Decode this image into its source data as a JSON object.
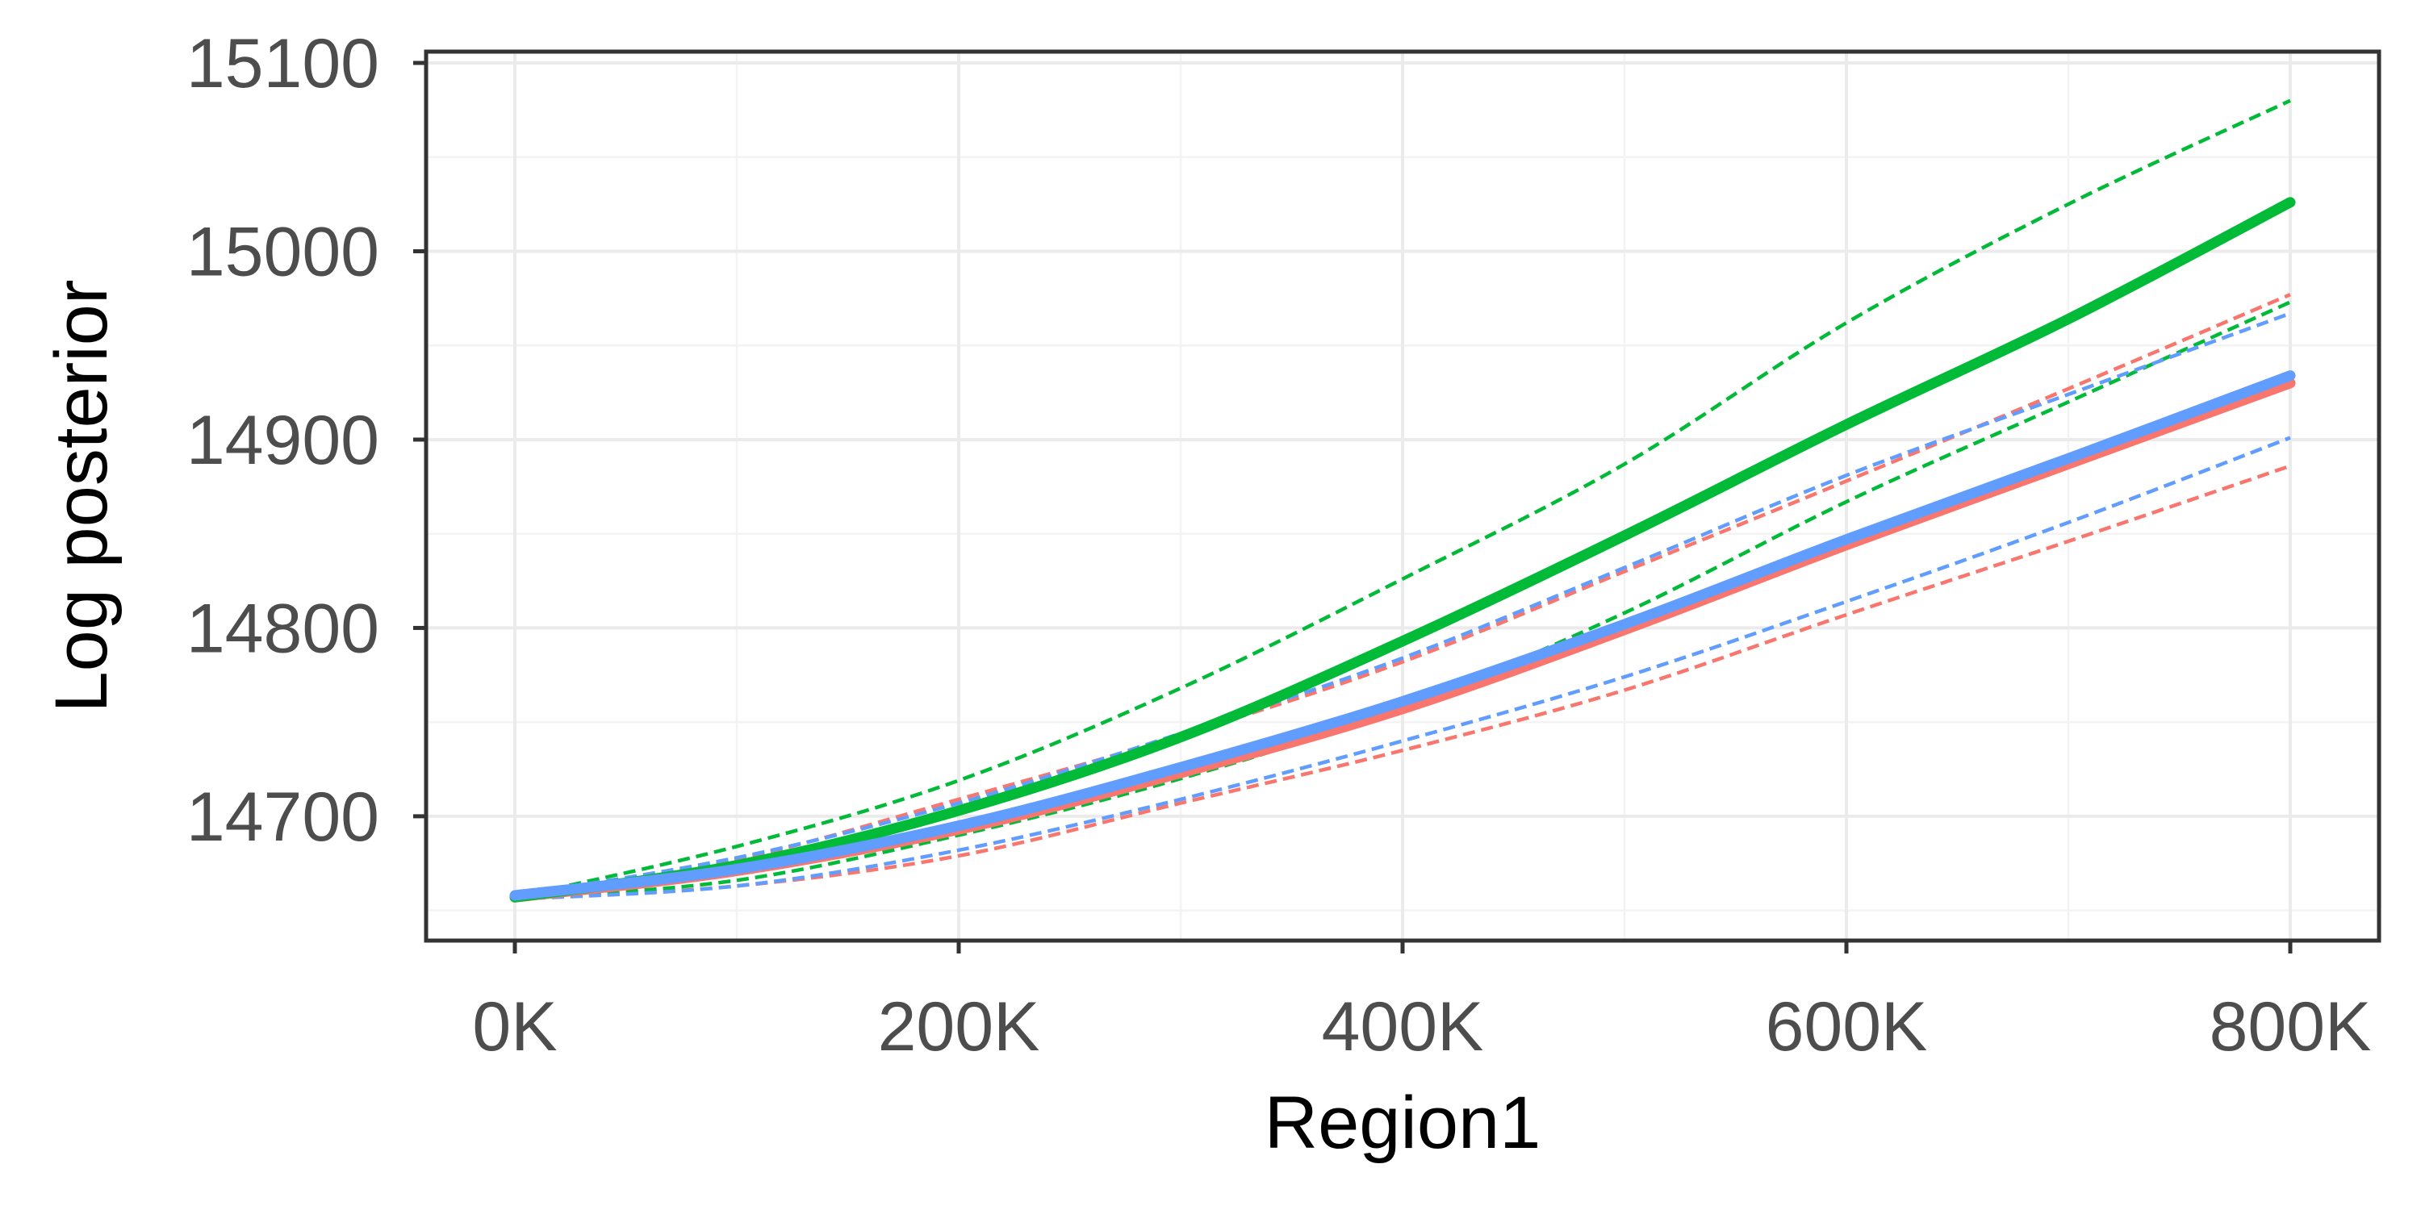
{
  "chart_data": {
    "type": "line",
    "title": "",
    "xlabel": "Region1",
    "ylabel": "Log posterior",
    "xlim": [
      -40000,
      840000
    ],
    "ylim": [
      14634,
      15106
    ],
    "x_ticks": [
      0,
      200000,
      400000,
      600000,
      800000
    ],
    "x_tick_labels": [
      "0K",
      "200K",
      "400K",
      "600K",
      "800K"
    ],
    "y_ticks": [
      14700,
      14800,
      14900,
      15000,
      15100
    ],
    "y_tick_labels": [
      "14700",
      "14800",
      "14900",
      "15000",
      "15100"
    ],
    "grid": true,
    "legend": "none",
    "series": [
      {
        "color": "#F8766D",
        "style": "solid",
        "x": [
          0,
          100000,
          200000,
          300000,
          400000,
          500000,
          600000,
          700000,
          800000
        ],
        "y": [
          14657,
          14671,
          14693,
          14723,
          14757,
          14799,
          14844,
          14887,
          14930
        ]
      },
      {
        "color": "#F8766D",
        "style": "dashed",
        "x": [
          0,
          100000,
          200000,
          300000,
          400000,
          500000,
          600000,
          700000,
          800000
        ],
        "y": [
          14657,
          14677,
          14709,
          14743,
          14782,
          14830,
          14878,
          14927,
          14977
        ]
      },
      {
        "color": "#F8766D",
        "style": "dashed",
        "x": [
          0,
          100000,
          200000,
          300000,
          400000,
          500000,
          600000,
          700000,
          800000
        ],
        "y": [
          14656,
          14663,
          14679,
          14707,
          14735,
          14767,
          14807,
          14846,
          14886
        ]
      },
      {
        "color": "#00BA38",
        "style": "solid",
        "x": [
          0,
          100000,
          200000,
          300000,
          400000,
          500000,
          600000,
          700000,
          800000
        ],
        "y": [
          14657,
          14674,
          14703,
          14742,
          14793,
          14849,
          14908,
          14964,
          15026
        ]
      },
      {
        "color": "#00BA38",
        "style": "dashed",
        "x": [
          0,
          100000,
          200000,
          300000,
          400000,
          500000,
          600000,
          700000,
          800000
        ],
        "y": [
          14657,
          14684,
          14719,
          14768,
          14826,
          14887,
          14962,
          15025,
          15080
        ]
      },
      {
        "color": "#00BA38",
        "style": "dashed",
        "x": [
          0,
          100000,
          200000,
          300000,
          400000,
          500000,
          600000,
          700000,
          800000
        ],
        "y": [
          14656,
          14666,
          14690,
          14720,
          14758,
          14808,
          14867,
          14920,
          14973
        ]
      },
      {
        "color": "#619CFF",
        "style": "solid",
        "x": [
          0,
          100000,
          200000,
          300000,
          400000,
          500000,
          600000,
          700000,
          800000
        ],
        "y": [
          14658,
          14672,
          14695,
          14726,
          14761,
          14802,
          14847,
          14890,
          14934
        ]
      },
      {
        "color": "#619CFF",
        "style": "dashed",
        "x": [
          0,
          100000,
          200000,
          300000,
          400000,
          500000,
          600000,
          700000,
          800000
        ],
        "y": [
          14658,
          14678,
          14707,
          14744,
          14784,
          14832,
          14881,
          14924,
          14967
        ]
      },
      {
        "color": "#619CFF",
        "style": "dashed",
        "x": [
          0,
          100000,
          200000,
          300000,
          400000,
          500000,
          600000,
          700000,
          800000
        ],
        "y": [
          14656,
          14663,
          14682,
          14709,
          14740,
          14774,
          14814,
          14856,
          14901
        ]
      }
    ]
  }
}
